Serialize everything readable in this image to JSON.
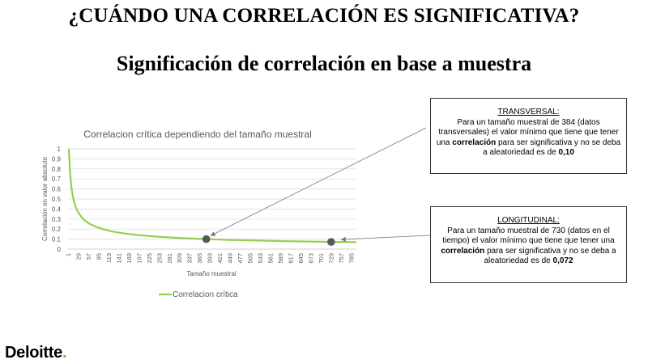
{
  "header": {
    "title": "¿CUÁNDO UNA CORRELACIÓN ES SIGNIFICATIVA?",
    "subtitle": "Significación de correlación en base a muestra"
  },
  "chart_data": {
    "type": "line",
    "title": "Correlacion crítica dependiendo del tamaño muestral",
    "xlabel": "Tamaño muestral",
    "ylabel": "Correlación en valor absoluto",
    "x_ticks": [
      "1",
      "29",
      "57",
      "85",
      "113",
      "141",
      "169",
      "197",
      "225",
      "253",
      "281",
      "309",
      "337",
      "365",
      "393",
      "421",
      "449",
      "477",
      "505",
      "533",
      "561",
      "589",
      "617",
      "645",
      "673",
      "701",
      "729",
      "757",
      "785"
    ],
    "y_ticks": [
      "0",
      "0.1",
      "0.2",
      "0.3",
      "0.4",
      "0.5",
      "0.6",
      "0.7",
      "0.8",
      "0.9",
      "1"
    ],
    "xlim": [
      1,
      800
    ],
    "ylim": [
      0,
      1
    ],
    "series": [
      {
        "name": "Correlacion crítica",
        "color": "#92d050",
        "x": [
          2,
          3,
          4,
          5,
          6,
          8,
          10,
          12,
          15,
          20,
          25,
          30,
          40,
          50,
          60,
          80,
          100,
          120,
          150,
          200,
          250,
          300,
          350,
          384,
          400,
          450,
          500,
          550,
          600,
          650,
          700,
          730,
          750,
          800
        ],
        "values": [
          1.0,
          0.997,
          0.95,
          0.878,
          0.811,
          0.707,
          0.632,
          0.576,
          0.514,
          0.444,
          0.396,
          0.361,
          0.312,
          0.279,
          0.254,
          0.22,
          0.197,
          0.179,
          0.16,
          0.139,
          0.124,
          0.113,
          0.105,
          0.1,
          0.098,
          0.092,
          0.088,
          0.084,
          0.08,
          0.077,
          0.074,
          0.072,
          0.072,
          0.069
        ]
      }
    ],
    "highlighted_points": [
      {
        "x": 384,
        "y": 0.1
      },
      {
        "x": 730,
        "y": 0.072
      }
    ],
    "legend_position": "bottom-left",
    "grid": true
  },
  "callouts": {
    "transversal": {
      "heading": "TRANSVERSAL",
      "colon": ":",
      "text1": "Para un tamaño muestral de 384 (datos transversales) el valor mínimo que tiene que tener una ",
      "bold1": "correlación",
      "text2": " para ser significativa  y no se deba a aleatoriedad es de ",
      "bold2": "0,10"
    },
    "longitudinal": {
      "heading": "LONGITUDINAL",
      "colon": ":",
      "text1": "Para un tamaño muestral de 730 (datos en el tiempo) el valor mínimo que tiene que tener una ",
      "bold1": "correlación",
      "text2": " para ser significativa  y no se deba a aleatoriedad es de ",
      "bold2": "0,072"
    }
  },
  "logo": {
    "text": "Deloitte",
    "dot": ".",
    "accent": "#86bc25"
  }
}
